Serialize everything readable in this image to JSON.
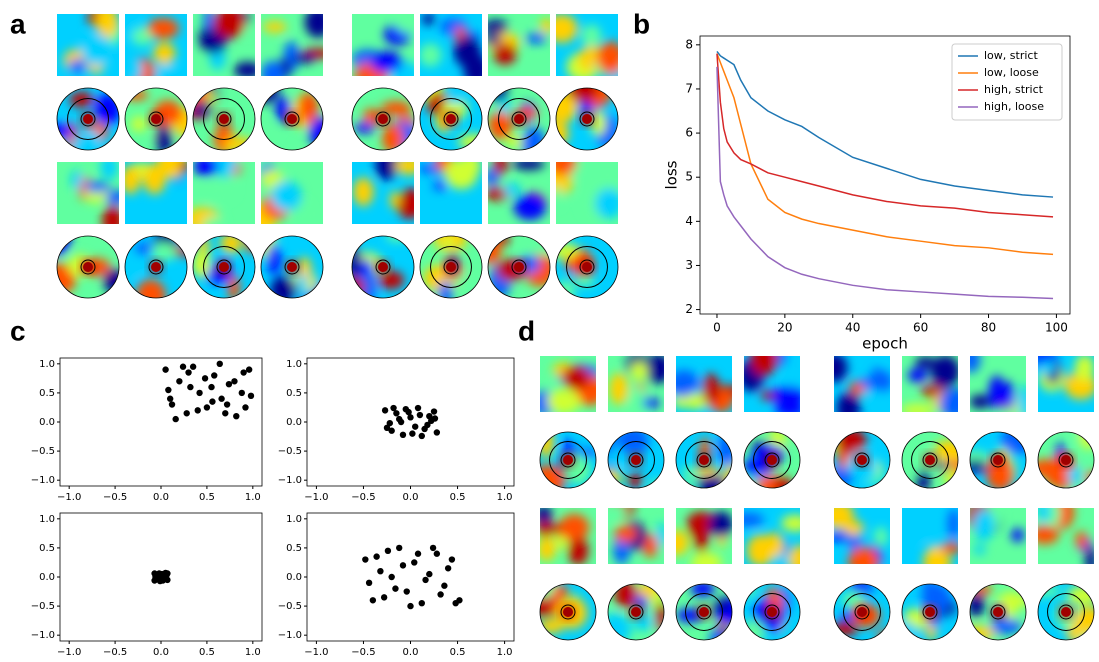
{
  "panel_labels": [
    "a",
    "b",
    "c",
    "d"
  ],
  "chart_data": [
    {
      "type": "line",
      "xlabel": "epoch",
      "ylabel": "loss",
      "x": [
        0,
        1,
        2,
        3,
        5,
        7,
        10,
        15,
        20,
        25,
        30,
        40,
        50,
        60,
        70,
        80,
        90,
        99
      ],
      "series": [
        {
          "name": "low, strict",
          "color": "#1f77b4",
          "values": [
            7.85,
            7.75,
            7.7,
            7.65,
            7.55,
            7.2,
            6.8,
            6.5,
            6.3,
            6.15,
            5.9,
            5.45,
            5.2,
            4.95,
            4.8,
            4.7,
            4.6,
            4.55
          ]
        },
        {
          "name": "low, loose",
          "color": "#ff7f0e",
          "values": [
            7.8,
            7.6,
            7.4,
            7.2,
            6.8,
            6.2,
            5.3,
            4.5,
            4.2,
            4.05,
            3.95,
            3.8,
            3.65,
            3.55,
            3.45,
            3.4,
            3.3,
            3.25
          ]
        },
        {
          "name": "high, strict",
          "color": "#d62728",
          "values": [
            7.8,
            6.7,
            6.1,
            5.8,
            5.55,
            5.4,
            5.3,
            5.1,
            5.0,
            4.9,
            4.8,
            4.6,
            4.45,
            4.35,
            4.3,
            4.2,
            4.15,
            4.1
          ]
        },
        {
          "name": "high, loose",
          "color": "#9467bd",
          "values": [
            7.5,
            4.9,
            4.6,
            4.35,
            4.1,
            3.9,
            3.6,
            3.2,
            2.95,
            2.8,
            2.7,
            2.55,
            2.45,
            2.4,
            2.35,
            2.3,
            2.28,
            2.25
          ]
        }
      ],
      "xlim": [
        -5,
        104
      ],
      "xticks": [
        0,
        20,
        40,
        60,
        80,
        100
      ],
      "ylim": [
        1.9,
        8.2
      ],
      "yticks": [
        2,
        3,
        4,
        5,
        6,
        7,
        8
      ],
      "legend": "upper right"
    },
    {
      "type": "scatter",
      "color": "#000000",
      "x": [
        0.05,
        0.12,
        0.2,
        0.28,
        0.35,
        0.42,
        0.5,
        0.58,
        0.66,
        0.74,
        0.82,
        0.9,
        0.98,
        0.08,
        0.16,
        0.24,
        0.32,
        0.4,
        0.48,
        0.56,
        0.64,
        0.72,
        0.8,
        0.88,
        0.96,
        0.1,
        0.3,
        0.55,
        0.7,
        0.92
      ],
      "y": [
        0.9,
        0.3,
        0.7,
        0.15,
        0.95,
        0.5,
        0.25,
        0.8,
        0.4,
        0.65,
        0.1,
        0.85,
        0.45,
        0.55,
        0.05,
        0.95,
        0.6,
        0.2,
        0.75,
        0.35,
        1.0,
        0.3,
        0.7,
        0.5,
        0.9,
        0.4,
        0.85,
        0.6,
        0.15,
        0.25
      ],
      "xlim": [
        -1.1,
        1.1
      ],
      "ylim": [
        -1.1,
        1.1
      ],
      "xticks": [
        {
          "value": -1,
          "label": "−1.0"
        },
        {
          "value": -0.5,
          "label": "−0.5"
        },
        {
          "value": 0,
          "label": "0.0"
        },
        {
          "value": 0.5,
          "label": "0.5"
        },
        {
          "value": 1,
          "label": "1.0"
        }
      ],
      "yticks": [
        {
          "value": -1,
          "label": "−1.0"
        },
        {
          "value": -0.5,
          "label": "−0.5"
        },
        {
          "value": 0,
          "label": "0.0"
        },
        {
          "value": 0.5,
          "label": "0.5"
        },
        {
          "value": 1,
          "label": "1.0"
        }
      ]
    },
    {
      "type": "scatter",
      "color": "#000000",
      "x": [
        -0.27,
        -0.2,
        -0.12,
        -0.05,
        0.02,
        0.1,
        0.18,
        0.25,
        -0.22,
        -0.15,
        -0.08,
        0.0,
        0.08,
        0.15,
        0.22,
        0.28,
        -0.25,
        -0.1,
        0.05,
        0.2,
        -0.18,
        0.12,
        -0.02,
        0.26
      ],
      "y": [
        0.2,
        -0.15,
        0.05,
        0.22,
        -0.2,
        0.12,
        -0.05,
        0.18,
        -0.02,
        0.15,
        -0.22,
        0.08,
        0.24,
        -0.12,
        0.02,
        -0.18,
        -0.1,
        0.0,
        -0.08,
        0.1,
        0.24,
        -0.24,
        0.17,
        0.06
      ],
      "xlim": [
        -1.1,
        1.1
      ],
      "ylim": [
        -1.1,
        1.1
      ],
      "xticks": [
        {
          "value": -1,
          "label": "−1.0"
        },
        {
          "value": -0.5,
          "label": "−0.5"
        },
        {
          "value": 0,
          "label": "0.0"
        },
        {
          "value": 0.5,
          "label": "0.5"
        },
        {
          "value": 1,
          "label": "1.0"
        }
      ],
      "yticks": [
        {
          "value": -1,
          "label": "−1.0"
        },
        {
          "value": -0.5,
          "label": "−0.5"
        },
        {
          "value": 0,
          "label": "0.0"
        },
        {
          "value": 0.5,
          "label": "0.5"
        },
        {
          "value": 1,
          "label": "1.0"
        }
      ]
    },
    {
      "type": "scatter",
      "color": "#000000",
      "x": [
        -0.07,
        -0.05,
        -0.03,
        -0.01,
        0.01,
        0.03,
        0.05,
        0.07,
        -0.06,
        -0.02,
        0.02,
        0.06,
        -0.04,
        0.0,
        0.04,
        -0.07,
        0.07,
        0.0
      ],
      "y": [
        0.06,
        -0.04,
        0.02,
        -0.07,
        0.05,
        -0.02,
        0.07,
        -0.05,
        0.0,
        0.06,
        -0.06,
        0.03,
        -0.03,
        0.01,
        0.0,
        -0.06,
        0.06,
        -0.05
      ],
      "xlim": [
        -1.1,
        1.1
      ],
      "ylim": [
        -1.1,
        1.1
      ],
      "xticks": [
        {
          "value": -1,
          "label": "−1.0"
        },
        {
          "value": -0.5,
          "label": "−0.5"
        },
        {
          "value": 0,
          "label": "0.0"
        },
        {
          "value": 0.5,
          "label": "0.5"
        },
        {
          "value": 1,
          "label": "1.0"
        }
      ],
      "yticks": [
        {
          "value": -1,
          "label": "−1.0"
        },
        {
          "value": -0.5,
          "label": "−0.5"
        },
        {
          "value": 0,
          "label": "0.0"
        },
        {
          "value": 0.5,
          "label": "0.5"
        },
        {
          "value": 1,
          "label": "1.0"
        }
      ]
    },
    {
      "type": "scatter",
      "color": "#000000",
      "x": [
        -0.48,
        -0.4,
        -0.32,
        -0.24,
        -0.16,
        -0.08,
        0.0,
        0.08,
        0.16,
        0.24,
        0.32,
        0.4,
        0.48,
        -0.44,
        -0.36,
        -0.28,
        -0.2,
        -0.12,
        -0.04,
        0.04,
        0.12,
        0.2,
        0.28,
        0.36,
        0.44,
        0.52
      ],
      "y": [
        0.3,
        -0.4,
        0.1,
        0.45,
        -0.2,
        0.2,
        -0.5,
        0.4,
        -0.05,
        0.5,
        -0.3,
        0.15,
        -0.45,
        -0.1,
        0.35,
        -0.35,
        0.0,
        0.5,
        -0.25,
        0.25,
        -0.45,
        0.05,
        0.4,
        -0.15,
        0.3,
        -0.4
      ],
      "xlim": [
        -1.1,
        1.1
      ],
      "ylim": [
        -1.1,
        1.1
      ],
      "xticks": [
        {
          "value": -1,
          "label": "−1.0"
        },
        {
          "value": -0.5,
          "label": "−0.5"
        },
        {
          "value": 0,
          "label": "0.0"
        },
        {
          "value": 0.5,
          "label": "0.5"
        },
        {
          "value": 1,
          "label": "1.0"
        }
      ],
      "yticks": [
        {
          "value": -1,
          "label": "−1.0"
        },
        {
          "value": -0.5,
          "label": "−0.5"
        },
        {
          "value": 0,
          "label": "0.0"
        },
        {
          "value": 0.5,
          "label": "0.5"
        },
        {
          "value": 1,
          "label": "1.0"
        }
      ]
    }
  ]
}
